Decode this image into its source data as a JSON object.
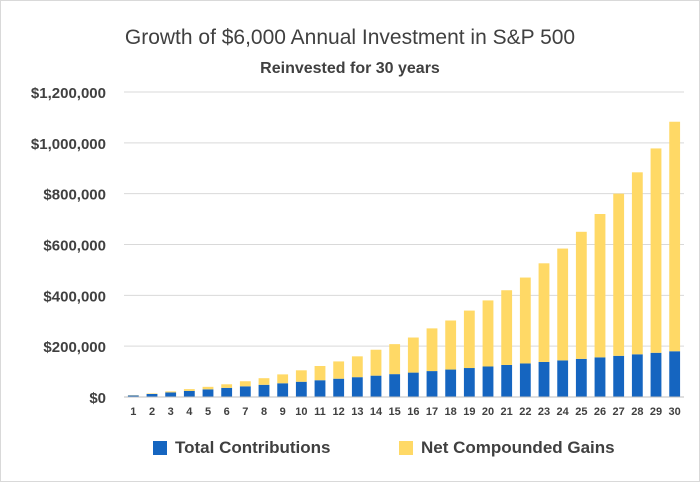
{
  "chart_data": {
    "type": "bar",
    "stacked": true,
    "title": "Growth of $6,000 Annual Investment in S&P 500",
    "subtitle": "Reinvested for 30 years",
    "xlabel": "",
    "ylabel": "",
    "ylim": [
      0,
      1200000
    ],
    "y_ticks": [
      0,
      200000,
      400000,
      600000,
      800000,
      1000000,
      1200000
    ],
    "y_tick_labels": [
      "$0",
      "$200,000",
      "$400,000",
      "$600,000",
      "$800,000",
      "$1,000,000",
      "$1,200,000"
    ],
    "categories": [
      "1",
      "2",
      "3",
      "4",
      "5",
      "6",
      "7",
      "8",
      "9",
      "10",
      "11",
      "12",
      "13",
      "14",
      "15",
      "16",
      "17",
      "18",
      "19",
      "20",
      "21",
      "22",
      "23",
      "24",
      "25",
      "26",
      "27",
      "28",
      "29",
      "30"
    ],
    "series": [
      {
        "name": "Total Contributions",
        "color": "#1565c0",
        "values": [
          6000,
          12000,
          18000,
          24000,
          30000,
          36000,
          42000,
          48000,
          54000,
          60000,
          66000,
          72000,
          78000,
          84000,
          90000,
          96000,
          102000,
          108000,
          114000,
          120000,
          126000,
          132000,
          138000,
          144000,
          150000,
          156000,
          162000,
          168000,
          174000,
          180000
        ]
      },
      {
        "name": "Net Compounded Gains",
        "color": "#ffd966",
        "values": [
          1000,
          2000,
          4000,
          7000,
          10000,
          14000,
          20000,
          26000,
          35000,
          45000,
          56000,
          68000,
          82000,
          102000,
          118000,
          138000,
          168000,
          193000,
          226000,
          260000,
          294000,
          338000,
          388000,
          440000,
          500000,
          564000,
          638000,
          716000,
          804000,
          903000
        ]
      }
    ],
    "legend_position": "bottom",
    "grid": true
  }
}
